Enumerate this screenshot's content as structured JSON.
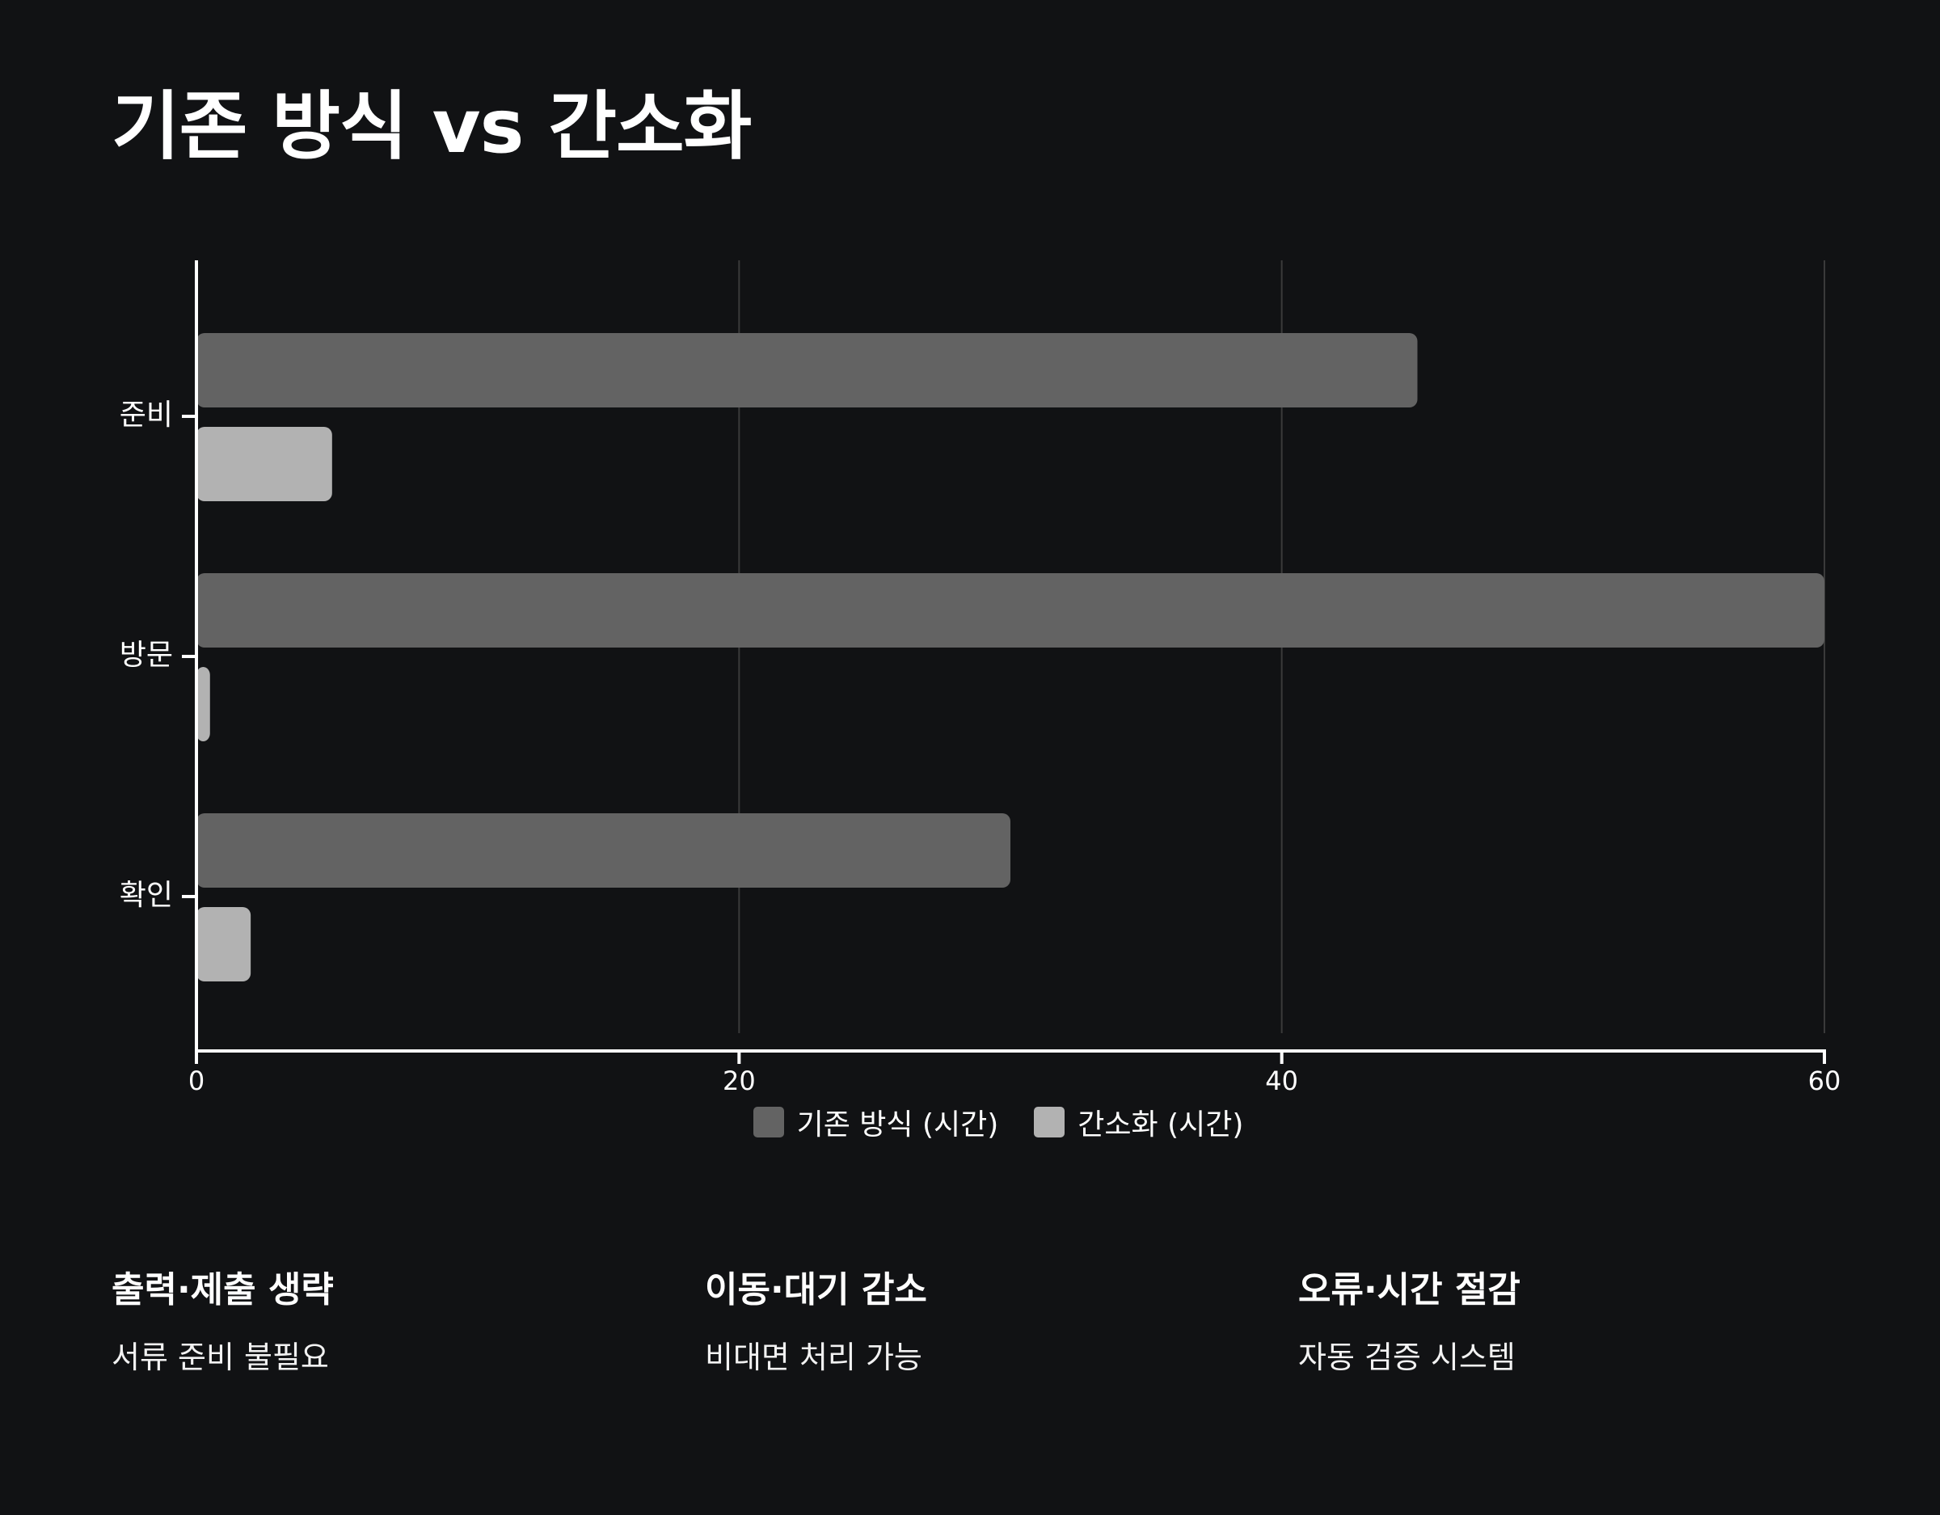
{
  "page": {
    "title": "기존 방식 vs 간소화"
  },
  "chart_data": {
    "type": "bar",
    "orientation": "horizontal",
    "categories": [
      "준비",
      "방문",
      "확인"
    ],
    "series": [
      {
        "name": "기존 방식 (시간)",
        "values": [
          45,
          60,
          30
        ],
        "color": "#636363"
      },
      {
        "name": "간소화 (시간)",
        "values": [
          5,
          0.5,
          2
        ],
        "color": "#b2b2b2"
      }
    ],
    "xlim": [
      0,
      60
    ],
    "xticks": [
      0,
      20,
      40,
      60
    ],
    "grid": "vertical",
    "legend": "bottom-center"
  },
  "features": [
    {
      "title": "출력·제출 생략",
      "desc": "서류 준비 불필요"
    },
    {
      "title": "이동·대기 감소",
      "desc": "비대면 처리 가능"
    },
    {
      "title": "오류·시간 절감",
      "desc": "자동 검증 시스템"
    }
  ],
  "colors": {
    "background": "#111214",
    "grid": "#3a3a3a",
    "axis": "#ffffff",
    "text": "#ffffff"
  }
}
